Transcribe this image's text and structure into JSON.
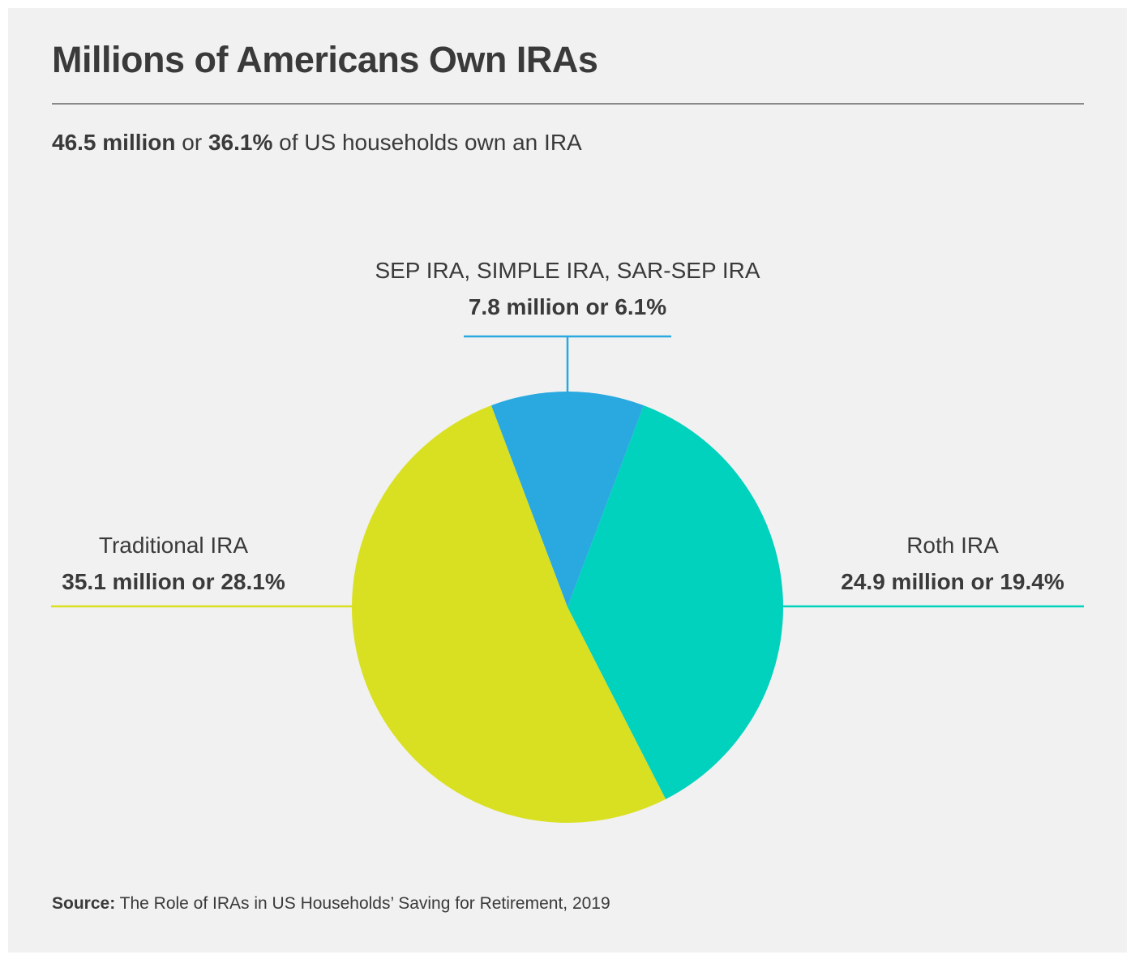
{
  "title": "Millions of Americans Own IRAs",
  "subtitle": {
    "bold_1": "46.5 million",
    "text_1": " or ",
    "bold_2": "36.1%",
    "text_2": " of US households own an IRA"
  },
  "source": {
    "label": "Source:",
    "text": " The Role of IRAs in US Households’ Saving for Retirement, 2019"
  },
  "chart_data": {
    "type": "pie",
    "title": "Millions of Americans Own IRAs",
    "unit": "million households",
    "slices": [
      {
        "name": "SEP IRA, SIMPLE IRA, SAR-SEP IRA",
        "value": 7.8,
        "percent": 6.1,
        "value_label": "7.8 million or 6.1%",
        "color": "#29a9e0"
      },
      {
        "name": "Roth IRA",
        "value": 24.9,
        "percent": 19.4,
        "value_label": "24.9 million or 19.4%",
        "color": "#00d2be"
      },
      {
        "name": "Traditional IRA",
        "value": 35.1,
        "percent": 28.1,
        "value_label": "35.1 million or 28.1%",
        "color": "#d9e021"
      }
    ]
  }
}
